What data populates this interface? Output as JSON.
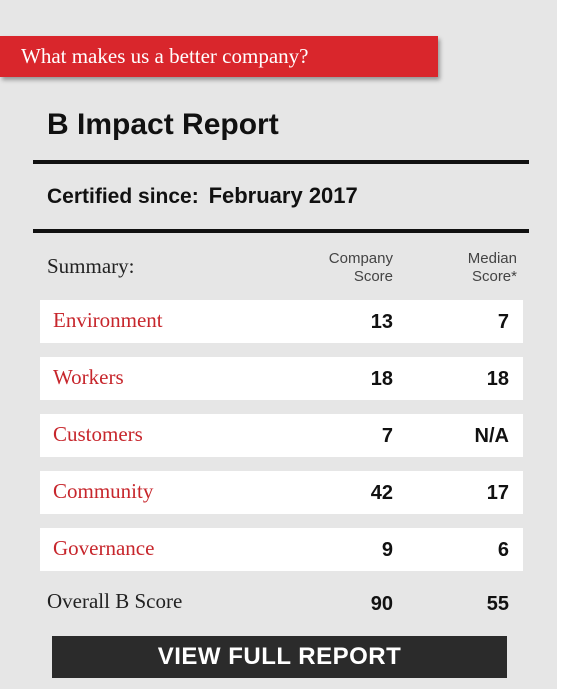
{
  "banner": {
    "text": "What makes us a better company?"
  },
  "report": {
    "title": "B Impact Report",
    "certified_label": "Certified since:",
    "certified_date": "February 2017"
  },
  "table": {
    "summary_label": "Summary:",
    "company_header_line1": "Company",
    "company_header_line2": "Score",
    "median_header_line1": "Median",
    "median_header_line2": "Score*",
    "rows": [
      {
        "label": "Environment",
        "company": "13",
        "median": "7"
      },
      {
        "label": "Workers",
        "company": "18",
        "median": "18"
      },
      {
        "label": "Customers",
        "company": "7",
        "median": "N/A"
      },
      {
        "label": "Community",
        "company": "42",
        "median": "17"
      },
      {
        "label": "Governance",
        "company": "9",
        "median": "6"
      }
    ],
    "overall": {
      "label": "Overall B Score",
      "company": "90",
      "median": "55"
    }
  },
  "cta": {
    "label": "VIEW FULL REPORT"
  },
  "colors": {
    "accent": "#d9262c",
    "category_text": "#c7262c",
    "panel_bg": "#e6e6e6",
    "button_bg": "#2b2b2b"
  }
}
